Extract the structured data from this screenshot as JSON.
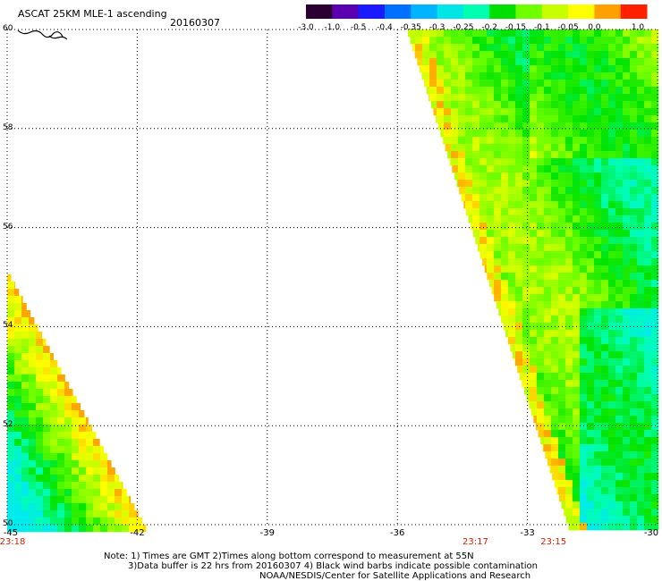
{
  "header": {
    "title": "ASCAT 25KM MLE-1 ascending",
    "date": "20160307"
  },
  "colorbar": {
    "labels": [
      "-3.0",
      "-1.0",
      "-0.5",
      "-0.4",
      "-0.35",
      "-0.3",
      "-0.25",
      "-0.2",
      "-0.15",
      "-0.1",
      "-0.05",
      "0.0",
      "1.0"
    ],
    "colors": [
      "#2a0030",
      "#5a00b0",
      "#1a1aff",
      "#0070ff",
      "#00b4ff",
      "#00e6e6",
      "#00ffb0",
      "#00e000",
      "#70ff00",
      "#c8ff00",
      "#ffff00",
      "#ffa000",
      "#ff2000"
    ]
  },
  "chart_data": {
    "type": "heatmap",
    "title": "ASCAT 25KM MLE-1 ascending",
    "subtitle": "20160307",
    "x_ticks": [
      "-45",
      "-42",
      "-39",
      "-36",
      "-33",
      "-30"
    ],
    "y_ticks": [
      "60",
      "58",
      "56",
      "54",
      "52",
      "50"
    ],
    "xlim": [
      -45,
      -30
    ],
    "ylim": [
      50,
      60
    ],
    "grid": true,
    "time_labels": [
      {
        "lon": -45,
        "label": "23:18"
      },
      {
        "lon": -34.2,
        "label": "23:17"
      },
      {
        "lon": -32.4,
        "label": "23:15"
      }
    ],
    "swaths": [
      {
        "name": "",
        "lon_range": [
          -45,
          -41.8
        ],
        "lat_range": [
          50,
          55.2
        ],
        "dominant_values": [
          "0.0",
          "-0.05",
          "-0.1",
          "-0.15",
          "-0.25",
          "-0.3"
        ]
      },
      {
        "name": "",
        "lon_range": [
          -35.8,
          -30
        ],
        "lat_range": [
          50,
          60
        ],
        "dominant_values": [
          "-0.1",
          "-0.15",
          "-0.2",
          "-0.25",
          "-0.3"
        ]
      }
    ]
  },
  "notes": {
    "line1": "Note: 1) Times are GMT 2)Times along bottom correspond to measurement at 55N",
    "line2": "3)Data buffer is 22 hrs from 20160307 4) Black wind barbs indicate possible contamination",
    "line3": "NOAA/NESDIS/Center for Satellite Applications and Research"
  }
}
